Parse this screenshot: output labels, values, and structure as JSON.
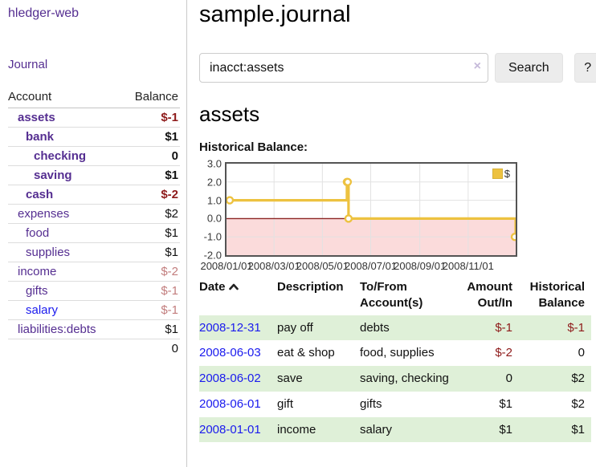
{
  "app": {
    "brand": "hledger-web"
  },
  "sidebar": {
    "journal_link": "Journal",
    "accounts_table": {
      "account_header": "Account",
      "balance_header": "Balance",
      "rows": [
        {
          "name": "assets",
          "balance": "$-1",
          "depth": 0,
          "bold": true,
          "negative": "strong"
        },
        {
          "name": "bank",
          "balance": "$1",
          "depth": 1,
          "bold": true,
          "negative": "none"
        },
        {
          "name": "checking",
          "balance": "0",
          "depth": 2,
          "bold": true,
          "negative": "none"
        },
        {
          "name": "saving",
          "balance": "$1",
          "depth": 2,
          "bold": true,
          "negative": "none"
        },
        {
          "name": "cash",
          "balance": "$-2",
          "depth": 1,
          "bold": true,
          "negative": "strong"
        },
        {
          "name": "expenses",
          "balance": "$2",
          "depth": 0,
          "bold": false,
          "negative": "none"
        },
        {
          "name": "food",
          "balance": "$1",
          "depth": 1,
          "bold": false,
          "negative": "none"
        },
        {
          "name": "supplies",
          "balance": "$1",
          "depth": 1,
          "bold": false,
          "negative": "none"
        },
        {
          "name": "income",
          "balance": "$-2",
          "depth": 0,
          "bold": false,
          "negative": "soft"
        },
        {
          "name": "gifts",
          "balance": "$-1",
          "depth": 1,
          "bold": false,
          "negative": "soft"
        },
        {
          "name": "salary",
          "balance": "$-1",
          "depth": 1,
          "bold": false,
          "negative": "soft",
          "link_style": "unvisited"
        },
        {
          "name": "liabilities:debts",
          "balance": "$1",
          "depth": 0,
          "bold": false,
          "negative": "none"
        }
      ],
      "total": "0"
    }
  },
  "header": {
    "title": "sample.journal"
  },
  "search": {
    "value": "inacct:assets",
    "clear_icon": "×",
    "button_label": "Search",
    "help_label": "?"
  },
  "account_page": {
    "heading": "assets",
    "chart_label": "Historical Balance:"
  },
  "chart_data": {
    "type": "line",
    "step": true,
    "title": "Historical Balance:",
    "legend": {
      "label": "$",
      "position": "top-right"
    },
    "series": [
      {
        "name": "$",
        "color": "#edc240",
        "points": [
          {
            "date": "2008-01-01",
            "x": 0,
            "y": 1
          },
          {
            "date": "2008-06-01",
            "x": 152,
            "y": 2
          },
          {
            "date": "2008-06-02",
            "x": 153,
            "y": 2
          },
          {
            "date": "2008-06-03",
            "x": 154,
            "y": 0
          },
          {
            "date": "2008-12-31",
            "x": 365,
            "y": -1
          }
        ]
      }
    ],
    "xlim": [
      0,
      365
    ],
    "ylim": [
      -2,
      3
    ],
    "x_ticks": [
      {
        "label": "2008/01/01",
        "x": 0
      },
      {
        "label": "2008/03/01",
        "x": 60
      },
      {
        "label": "2008/05/01",
        "x": 121
      },
      {
        "label": "2008/07/01",
        "x": 182
      },
      {
        "label": "2008/09/01",
        "x": 244
      },
      {
        "label": "2008/11/01",
        "x": 305
      }
    ],
    "y_ticks": [
      {
        "label": "3.0",
        "y": 3
      },
      {
        "label": "2.0",
        "y": 2
      },
      {
        "label": "1.0",
        "y": 1
      },
      {
        "label": "0.0",
        "y": 0
      },
      {
        "label": "-1.0",
        "y": -1
      },
      {
        "label": "-2.0",
        "y": -2
      }
    ],
    "grid": true,
    "negative_region": true
  },
  "register_table": {
    "headers": [
      "Date",
      "Description",
      "To/From Account(s)",
      "Amount Out/In",
      "Historical Balance"
    ],
    "sort": {
      "column": "Date",
      "direction": "asc"
    },
    "rows": [
      {
        "date": "2008-12-31",
        "description": "pay off",
        "accounts": "debts",
        "amount": "$-1",
        "balance": "$-1"
      },
      {
        "date": "2008-06-03",
        "description": "eat & shop",
        "accounts": "food, supplies",
        "amount": "$-2",
        "balance": "0"
      },
      {
        "date": "2008-06-02",
        "description": "save",
        "accounts": "saving, checking",
        "amount": "0",
        "balance": "$2"
      },
      {
        "date": "2008-06-01",
        "description": "gift",
        "accounts": "gifts",
        "amount": "$1",
        "balance": "$2"
      },
      {
        "date": "2008-01-01",
        "description": "income",
        "accounts": "salary",
        "amount": "$1",
        "balance": "$1"
      }
    ]
  },
  "colors": {
    "link_purple": "#552e91",
    "link_blue": "#1a1aee",
    "negative_strong": "#8e1a1a",
    "negative_soft": "#c27d7d",
    "row_stripe_green": "#dff0d8",
    "series_gold": "#edc240",
    "negative_region_pink": "#fbdbdb",
    "zero_line_red": "#8b2423",
    "grid_gray": "#e2e2e2",
    "chart_border": "#545454"
  }
}
